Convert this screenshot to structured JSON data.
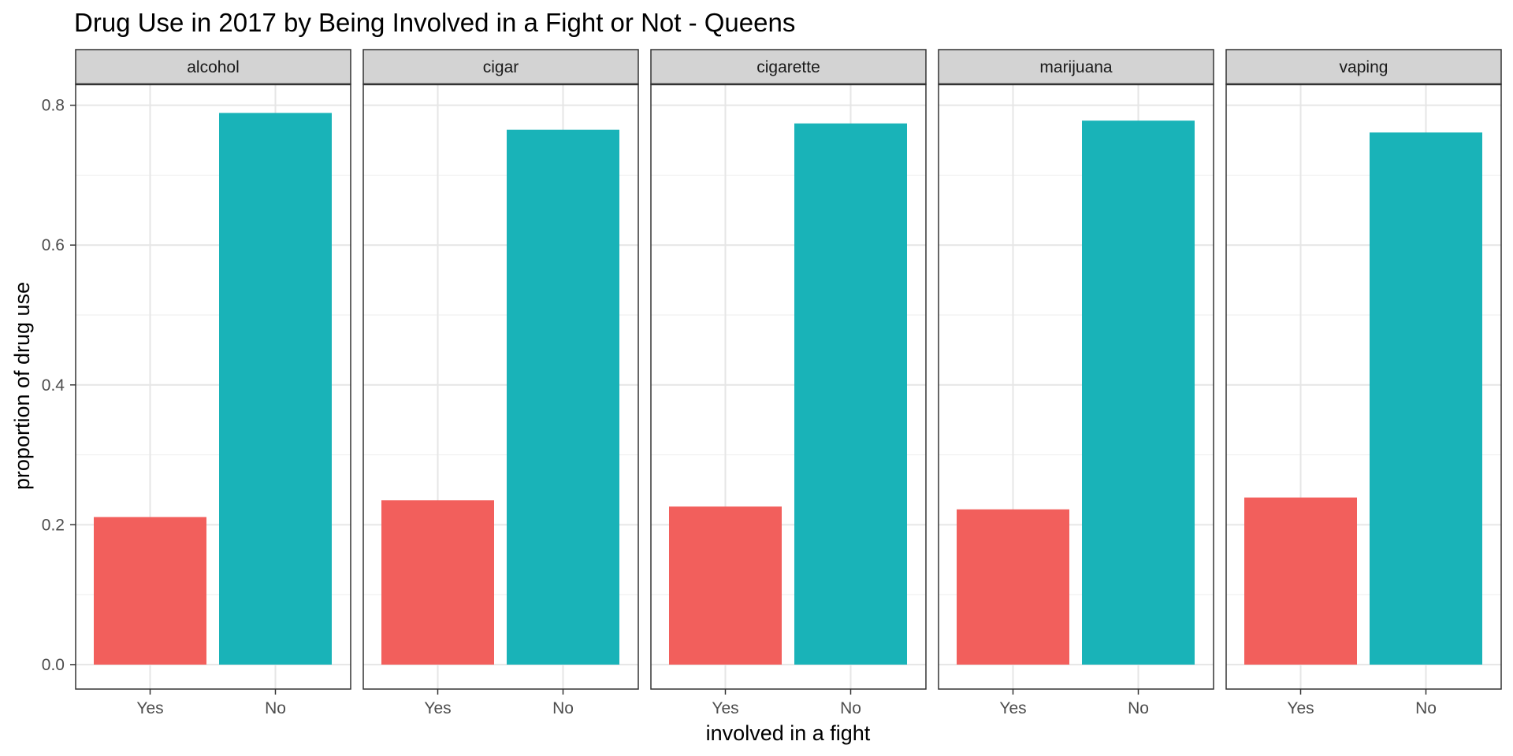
{
  "chart_data": {
    "type": "bar",
    "title": "Drug Use in 2017 by Being Involved in a Fight or Not  - Queens",
    "xlabel": "involved in a fight",
    "ylabel": "proportion of drug use",
    "ylim": [
      -0.035,
      0.83
    ],
    "yticks": [
      0.0,
      0.2,
      0.4,
      0.6,
      0.8
    ],
    "ytick_labels": [
      "0.0",
      "0.2",
      "0.4",
      "0.6",
      "0.8"
    ],
    "categories": [
      "Yes",
      "No"
    ],
    "colors": {
      "Yes": "#F25F5C",
      "No": "#19B3B8"
    },
    "panel_bg": "#FFFFFF",
    "strip_bg": "#D3D3D3",
    "grid": true,
    "legend": "none",
    "facets": [
      {
        "label": "alcohol",
        "values": [
          0.211,
          0.789
        ]
      },
      {
        "label": "cigar",
        "values": [
          0.235,
          0.765
        ]
      },
      {
        "label": "cigarette",
        "values": [
          0.226,
          0.774
        ]
      },
      {
        "label": "marijuana",
        "values": [
          0.222,
          0.778
        ]
      },
      {
        "label": "vaping",
        "values": [
          0.239,
          0.761
        ]
      }
    ]
  }
}
